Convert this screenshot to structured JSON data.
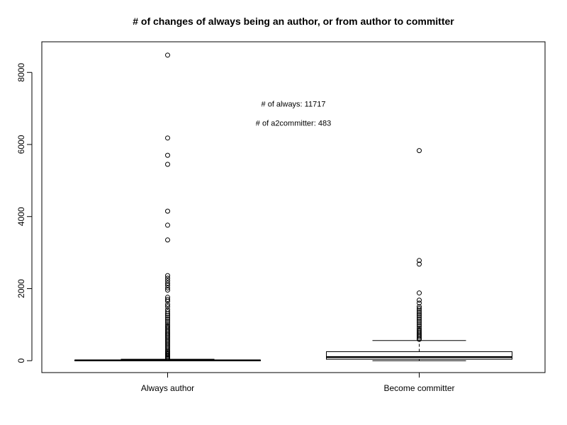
{
  "chart_data": {
    "type": "boxplot",
    "title": "# of changes of always being an author, or from author to committer",
    "xlabel": "",
    "ylabel": "",
    "ylim": [
      -330,
      8850
    ],
    "yticks": [
      0,
      2000,
      4000,
      6000,
      8000
    ],
    "ytick_labels": [
      "0",
      "2000",
      "4000",
      "6000",
      "8000"
    ],
    "grid": false,
    "categories": [
      "Always author",
      "Become committer"
    ],
    "boxes": [
      {
        "name": "Always author",
        "min": 0,
        "q1": 3,
        "median": 8,
        "q3": 18,
        "whisker_high": 40,
        "outliers": [
          8480,
          6180,
          5700,
          5450,
          4150,
          3760,
          3350,
          2360,
          2290,
          2220,
          2150,
          2090,
          2020,
          1960,
          1760,
          1700,
          1650,
          1560,
          1500,
          1420,
          1360,
          1300,
          1250,
          1200,
          1150,
          1100,
          1050,
          1000,
          960,
          920,
          880,
          840,
          800,
          760,
          720,
          680,
          640,
          600,
          560,
          520,
          480,
          440,
          400,
          360,
          320,
          280,
          250,
          220,
          190,
          160,
          130,
          100,
          75,
          55
        ]
      },
      {
        "name": "Become committer",
        "min": 0,
        "q1": 40,
        "median": 100,
        "q3": 250,
        "whisker_high": 560,
        "outliers": [
          5830,
          2780,
          2680,
          1880,
          1680,
          1600,
          1500,
          1450,
          1400,
          1350,
          1300,
          1250,
          1200,
          1150,
          1100,
          1050,
          1000,
          950,
          900,
          860,
          820,
          780,
          740,
          700,
          660,
          620,
          590
        ]
      }
    ],
    "annotations": [
      {
        "text": "# of always: 11717",
        "x": 1.5,
        "y": 7050
      },
      {
        "text": "# of a2committer: 483",
        "x": 1.5,
        "y": 6520
      }
    ]
  }
}
